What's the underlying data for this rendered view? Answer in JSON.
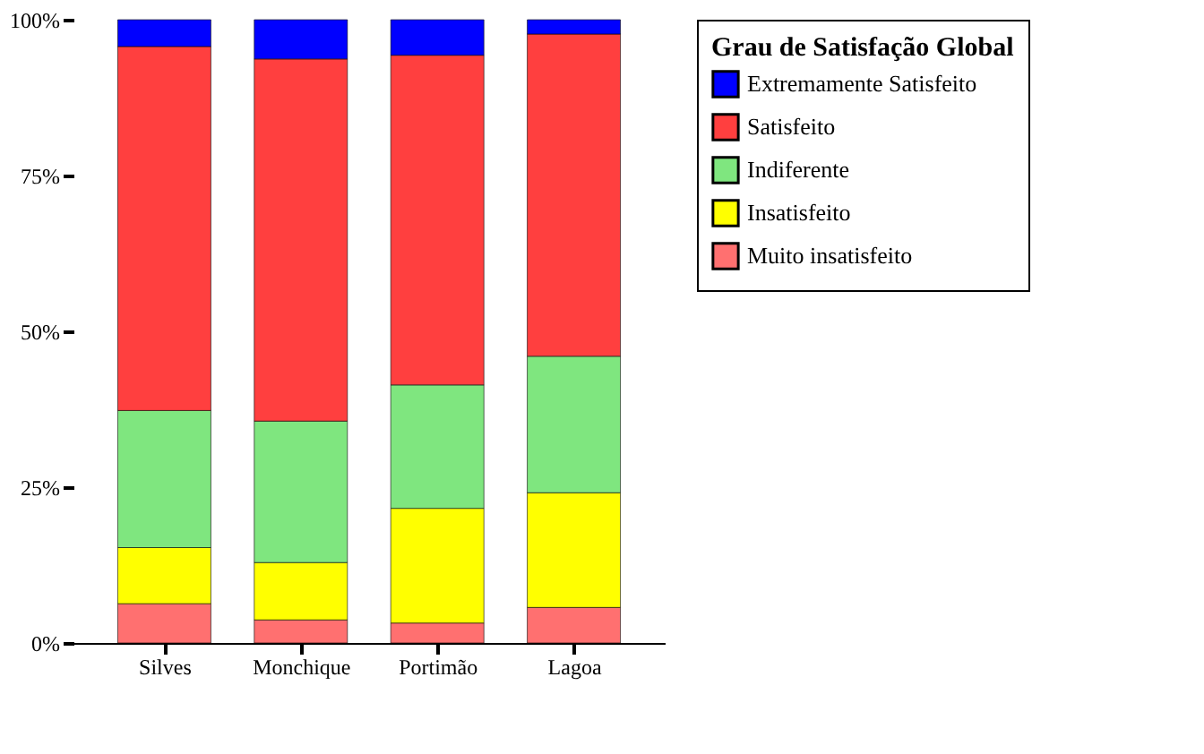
{
  "chart_data": {
    "type": "bar",
    "stacked": true,
    "legend_title": "Grau de Satisfação Global",
    "legend": "right",
    "categories": [
      "Silves",
      "Monchique",
      "Portimão",
      "Lagoa"
    ],
    "ylim": [
      0,
      100
    ],
    "yticks": [
      {
        "value": 0,
        "label": "0%"
      },
      {
        "value": 25,
        "label": "25%"
      },
      {
        "value": 50,
        "label": "50%"
      },
      {
        "value": 75,
        "label": "75%"
      },
      {
        "value": 100,
        "label": "100%"
      }
    ],
    "series": [
      {
        "name": "Muito insatisfeito",
        "color": "#ff7070",
        "values": [
          6.3,
          3.7,
          3.2,
          5.7
        ]
      },
      {
        "name": "Insatisfeito",
        "color": "#ffff00",
        "values": [
          9,
          9.2,
          18.4,
          18.4
        ]
      },
      {
        "name": "Indiferente",
        "color": "#7fe67f",
        "values": [
          22,
          22.7,
          19.8,
          21.9
        ]
      },
      {
        "name": "Satisfeito",
        "color": "#ff3f3f",
        "values": [
          58.4,
          58.1,
          52.9,
          51.7
        ]
      },
      {
        "name": "Extremamente Satisfeito",
        "color": "#0000ff",
        "values": [
          4.3,
          6.3,
          5.7,
          2.3
        ]
      }
    ]
  }
}
